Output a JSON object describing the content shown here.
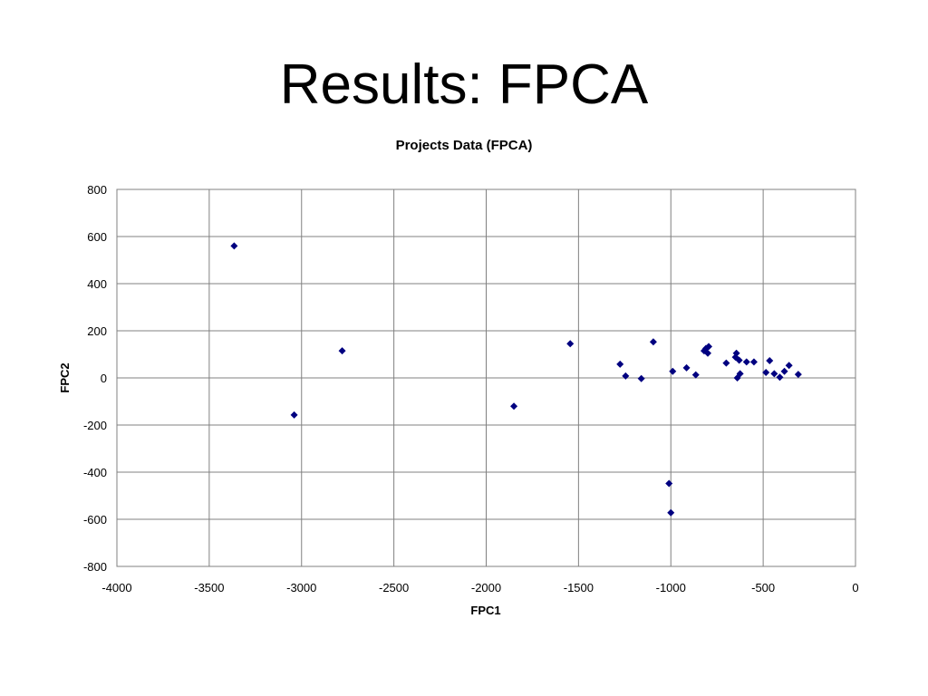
{
  "slide": {
    "title": "Results: FPCA"
  },
  "chart_data": {
    "type": "scatter",
    "title": "Projects Data (FPCA)",
    "xlabel": "FPC1",
    "ylabel": "FPC2",
    "xlim": [
      -4000,
      0
    ],
    "ylim": [
      -800,
      800
    ],
    "xticks": [
      -4000,
      -3500,
      -3000,
      -2500,
      -2000,
      -1500,
      -1000,
      -500,
      0
    ],
    "yticks": [
      800,
      600,
      400,
      200,
      0,
      -200,
      -400,
      -600,
      -800
    ],
    "grid": true,
    "legend": "none",
    "marker": "diamond",
    "color": "#000080",
    "series": [
      {
        "points": [
          [
            -3365,
            560
          ],
          [
            -3040,
            -157
          ],
          [
            -2780,
            115
          ],
          [
            -1850,
            -120
          ],
          [
            -1545,
            145
          ],
          [
            -1275,
            58
          ],
          [
            -1245,
            8
          ],
          [
            -1160,
            -3
          ],
          [
            -1095,
            153
          ],
          [
            -1010,
            -448
          ],
          [
            -1000,
            -572
          ],
          [
            -990,
            28
          ],
          [
            -915,
            43
          ],
          [
            -865,
            13
          ],
          [
            -820,
            115
          ],
          [
            -810,
            125
          ],
          [
            -800,
            105
          ],
          [
            -795,
            133
          ],
          [
            -700,
            63
          ],
          [
            -650,
            88
          ],
          [
            -645,
            105
          ],
          [
            -640,
            0
          ],
          [
            -630,
            75
          ],
          [
            -625,
            18
          ],
          [
            -590,
            68
          ],
          [
            -550,
            68
          ],
          [
            -485,
            23
          ],
          [
            -465,
            73
          ],
          [
            -440,
            18
          ],
          [
            -410,
            3
          ],
          [
            -385,
            28
          ],
          [
            -360,
            53
          ],
          [
            -310,
            15
          ]
        ]
      }
    ]
  }
}
